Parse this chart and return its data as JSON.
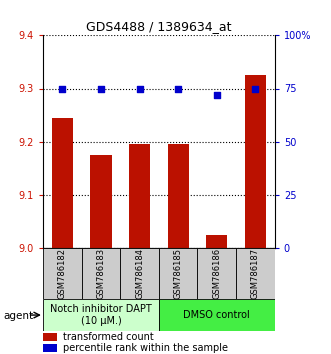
{
  "title": "GDS4488 / 1389634_at",
  "categories": [
    "GSM786182",
    "GSM786183",
    "GSM786184",
    "GSM786185",
    "GSM786186",
    "GSM786187"
  ],
  "bar_values": [
    9.245,
    9.175,
    9.195,
    9.195,
    9.025,
    9.325
  ],
  "dot_values": [
    75,
    75,
    75,
    75,
    72,
    75
  ],
  "ylim_left": [
    9.0,
    9.4
  ],
  "ylim_right": [
    0,
    100
  ],
  "yticks_left": [
    9.0,
    9.1,
    9.2,
    9.3,
    9.4
  ],
  "yticks_right": [
    0,
    25,
    50,
    75,
    100
  ],
  "ytick_labels_right": [
    "0",
    "25",
    "50",
    "75",
    "100%"
  ],
  "bar_color": "#bb1100",
  "dot_color": "#0000cc",
  "grid_color": "#000000",
  "group1_label": "Notch inhibitor DAPT\n(10 μM.)",
  "group2_label": "DMSO control",
  "group1_color": "#ccffcc",
  "group2_color": "#44ee44",
  "legend_bar_label": "transformed count",
  "legend_dot_label": "percentile rank within the sample",
  "agent_label": "agent",
  "left_axis_color": "#cc1100",
  "right_axis_color": "#0000cc",
  "label_bg_color": "#cccccc",
  "title_fontsize": 9,
  "tick_fontsize": 7,
  "label_fontsize": 6,
  "group_fontsize": 7,
  "legend_fontsize": 7
}
